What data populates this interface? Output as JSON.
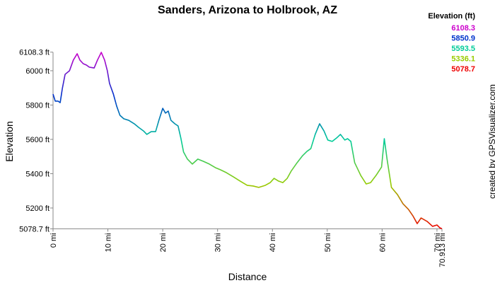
{
  "chart_data": {
    "type": "line",
    "title": "Sanders, Arizona to Holbrook, AZ",
    "x_label": "Distance",
    "y_label": "Elevation",
    "credit": "created by GPSVisualizer.com",
    "x": [
      0,
      0.4,
      0.9,
      1.3,
      1.7,
      2.2,
      3.0,
      3.7,
      4.4,
      4.9,
      5.5,
      6.1,
      6.6,
      7.5,
      8.1,
      8.8,
      9.4,
      9.9,
      10.3,
      11.0,
      11.6,
      12.2,
      12.9,
      13.8,
      14.8,
      15.6,
      16.5,
      17.1,
      17.9,
      18.7,
      19.3,
      20.0,
      20.5,
      21.0,
      21.5,
      22.2,
      22.8,
      23.3,
      23.8,
      24.5,
      25.4,
      26.4,
      27.4,
      28.5,
      29.6,
      30.5,
      31.6,
      32.9,
      34.1,
      35.4,
      36.5,
      37.5,
      38.7,
      39.6,
      40.3,
      41.1,
      41.9,
      42.7,
      43.4,
      44.5,
      45.5,
      46.3,
      47.0,
      47.8,
      48.6,
      49.4,
      50.1,
      50.9,
      51.7,
      52.4,
      53.2,
      53.7,
      54.3,
      55.0,
      56.1,
      57.1,
      57.9,
      58.9,
      59.9,
      60.4,
      60.9,
      61.7,
      62.8,
      63.8,
      64.8,
      65.6,
      66.4,
      67.1,
      68.2,
      69.2,
      70.0,
      70.5,
      70.913
    ],
    "series": [
      {
        "name": "Elevation",
        "values": [
          5864,
          5823,
          5823,
          5814,
          5897,
          5979,
          6000,
          6062,
          6099,
          6062,
          6041,
          6033,
          6021,
          6016,
          6062,
          6107,
          6062,
          6000,
          5926,
          5864,
          5794,
          5740,
          5720,
          5711,
          5691,
          5670,
          5649,
          5629,
          5645,
          5645,
          5711,
          5781,
          5753,
          5765,
          5711,
          5691,
          5678,
          5608,
          5526,
          5485,
          5456,
          5485,
          5472,
          5456,
          5435,
          5423,
          5406,
          5381,
          5357,
          5332,
          5328,
          5320,
          5332,
          5348,
          5373,
          5357,
          5348,
          5373,
          5414,
          5464,
          5505,
          5530,
          5546,
          5629,
          5691,
          5649,
          5596,
          5588,
          5608,
          5629,
          5596,
          5604,
          5588,
          5464,
          5390,
          5340,
          5348,
          5390,
          5439,
          5604,
          5485,
          5320,
          5278,
          5225,
          5192,
          5155,
          5109,
          5142,
          5122,
          5093,
          5101,
          5085,
          5079
        ]
      }
    ],
    "xlim": [
      0,
      70.913
    ],
    "ylim": [
      5078.7,
      6108.3
    ],
    "xticks": [
      {
        "value": 0,
        "label": "0 mi"
      },
      {
        "value": 10,
        "label": "10 mi"
      },
      {
        "value": 20,
        "label": "20 mi"
      },
      {
        "value": 30,
        "label": "30 mi"
      },
      {
        "value": 40,
        "label": "40 mi"
      },
      {
        "value": 50,
        "label": "50 mi"
      },
      {
        "value": 60,
        "label": "60 mi"
      },
      {
        "value": 70,
        "label": "70 mi"
      },
      {
        "value": 70.913,
        "label": "70.913 mi"
      }
    ],
    "yticks": [
      {
        "value": 5078.7,
        "label": "5078.7 ft"
      },
      {
        "value": 5200,
        "label": "5200 ft"
      },
      {
        "value": 5400,
        "label": "5400 ft"
      },
      {
        "value": 5600,
        "label": "5600 ft"
      },
      {
        "value": 5800,
        "label": "5800 ft"
      },
      {
        "value": 6000,
        "label": "6000 ft"
      },
      {
        "value": 6108.3,
        "label": "6108.3 ft"
      }
    ],
    "color_scale": {
      "title": "Elevation (ft)",
      "values": [
        6108.3,
        5850.9,
        5593.5,
        5336.1,
        5078.7
      ],
      "colors": [
        "#cc00cc",
        "#0033cc",
        "#00cc99",
        "#99cc00",
        "#ee0000"
      ]
    }
  }
}
